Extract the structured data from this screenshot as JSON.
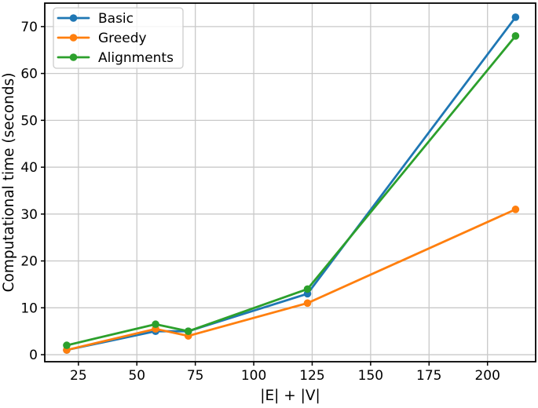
{
  "chart_data": {
    "type": "line",
    "title": "",
    "xlabel": "|E| + |V|",
    "ylabel": "Computational time (seconds)",
    "x": [
      20,
      58,
      72,
      123,
      212
    ],
    "series": [
      {
        "name": "Basic",
        "color": "#1f77b4",
        "values": [
          1,
          5,
          5,
          13,
          72
        ]
      },
      {
        "name": "Greedy",
        "color": "#ff7f0e",
        "values": [
          1,
          5.5,
          4,
          11,
          31
        ]
      },
      {
        "name": "Alignments",
        "color": "#2ca02c",
        "values": [
          2,
          6.5,
          5,
          14,
          68
        ]
      }
    ],
    "xticks": [
      25,
      50,
      75,
      100,
      125,
      150,
      175,
      200
    ],
    "yticks": [
      0,
      10,
      20,
      30,
      40,
      50,
      60,
      70
    ],
    "xlim": [
      10.6,
      220.6
    ],
    "ylim": [
      -1.5,
      75
    ],
    "grid": true,
    "legend_position": "upper-left",
    "marker": "circle",
    "colors": {
      "grid": "#c9c9c9",
      "spine": "#000000",
      "tick": "#000000",
      "text": "#000000",
      "background": "#ffffff",
      "legend_border": "#cccccc",
      "legend_fill_alpha": 0.8
    }
  }
}
